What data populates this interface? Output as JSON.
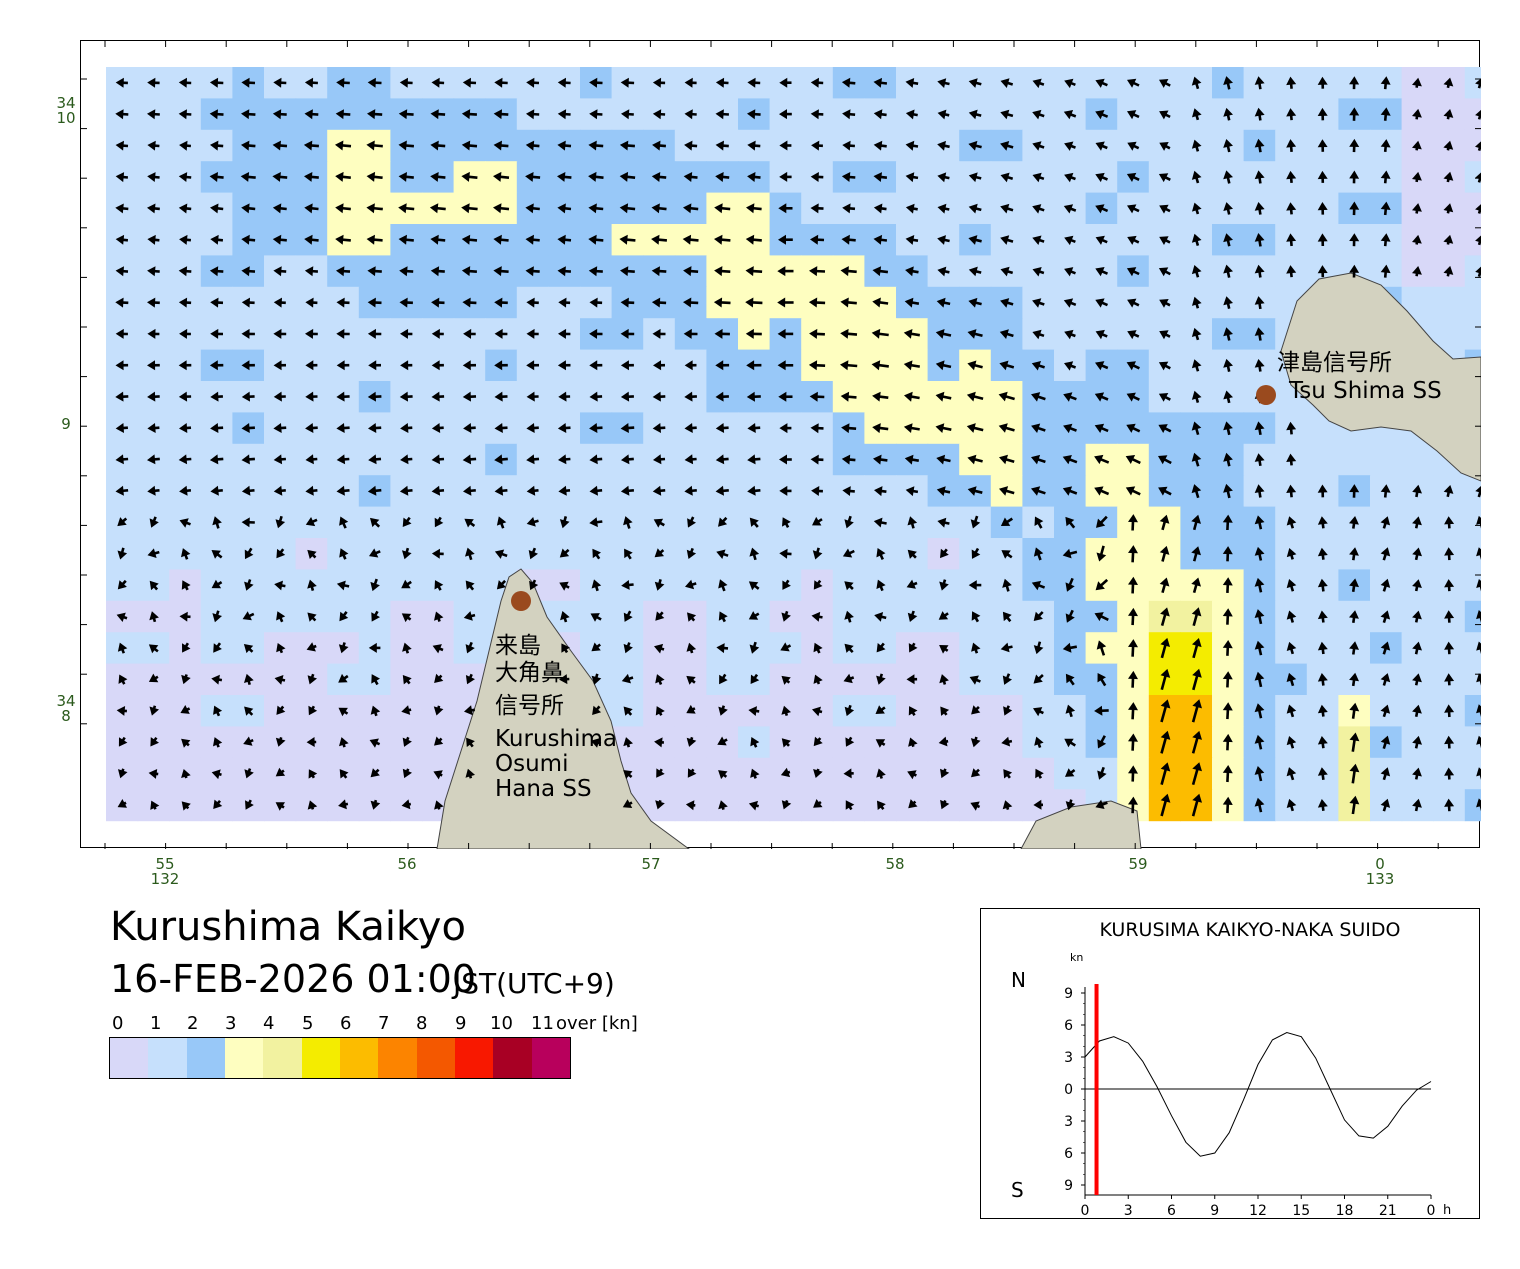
{
  "map": {
    "axis_color": "#2b5a1c",
    "lat_ticks": [
      {
        "deg": "34",
        "min": "10",
        "label_min": "10",
        "show_deg": true
      },
      {
        "deg": "",
        "min": "9",
        "label_min": "9",
        "show_deg": false
      },
      {
        "deg": "34",
        "min": "8",
        "label_min": "8",
        "show_deg": true
      }
    ],
    "lon_ticks": [
      {
        "min": "55",
        "deg": "132",
        "show_deg": true
      },
      {
        "min": "56",
        "deg": "",
        "show_deg": false
      },
      {
        "min": "57",
        "deg": "",
        "show_deg": false
      },
      {
        "min": "58",
        "deg": "",
        "show_deg": false
      },
      {
        "min": "59",
        "deg": "",
        "show_deg": false
      },
      {
        "min": "0",
        "deg": "133",
        "show_deg": true
      }
    ],
    "places": [
      {
        "id": "tsushima",
        "ja": "津島信号所",
        "en": "Tsu Shima SS"
      },
      {
        "id": "kurushima",
        "ja_lines": [
          "来島",
          "大角鼻",
          "信号所"
        ],
        "en_lines": [
          "Kurushima",
          "Osumi",
          "Hana SS"
        ]
      }
    ],
    "land_color": "#d3d2c0",
    "station_color": "#9a4a1e"
  },
  "title": "Kurushima Kaikyo",
  "datetime": "16-FEB-2026 01:00",
  "timezone": "JST(UTC+9)",
  "legend": {
    "labels": [
      "0",
      "1",
      "2",
      "3",
      "4",
      "5",
      "6",
      "7",
      "8",
      "9",
      "10",
      "11"
    ],
    "over_label": "over [kn]",
    "colors": [
      "#d8d8f8",
      "#c6e0fc",
      "#98c8f8",
      "#fefec0",
      "#f2f2a0",
      "#f4ec00",
      "#fcbc00",
      "#fc8400",
      "#f45800",
      "#f81800",
      "#a80024",
      "#b8005c"
    ]
  },
  "tide_panel": {
    "title": "KURUSIMA KAIKYO-NAKA SUIDO",
    "unit": "kn",
    "north_label": "N",
    "south_label": "S",
    "y_tick_labels": [
      "9",
      "6",
      "3",
      "0",
      "3",
      "6",
      "9"
    ],
    "x_tick_labels": [
      "0",
      "3",
      "6",
      "9",
      "12",
      "15",
      "18",
      "21",
      "0"
    ],
    "x_unit": "h",
    "current_hour": 0.8,
    "marker_color": "#ff0000",
    "curve": {
      "hours": [
        0,
        1,
        2,
        3,
        4,
        5,
        6,
        7,
        8,
        9,
        10,
        11,
        12,
        13,
        14,
        15,
        16,
        17,
        18,
        19,
        20,
        21,
        22,
        23,
        24
      ],
      "speed_kn": [
        3.0,
        4.5,
        4.9,
        4.3,
        2.6,
        0.2,
        -2.5,
        -5.0,
        -6.3,
        -6.0,
        -4.1,
        -1.0,
        2.3,
        4.6,
        5.3,
        4.9,
        2.9,
        0.0,
        -2.9,
        -4.4,
        -4.6,
        -3.5,
        -1.6,
        -0.1,
        0.7
      ]
    }
  }
}
